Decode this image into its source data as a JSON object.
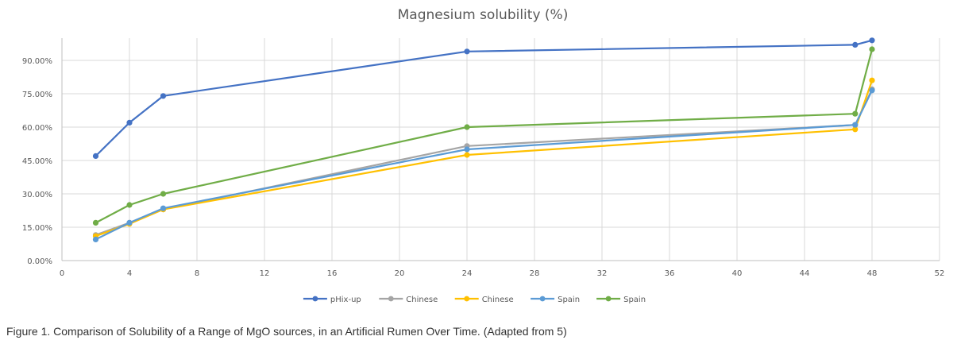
{
  "chart_data": {
    "type": "line",
    "title": "Magnesium solubility (%)",
    "xlabel": "",
    "ylabel": "",
    "xlim": [
      0,
      52
    ],
    "ylim": [
      0,
      100
    ],
    "x_ticks": [
      0,
      4,
      8,
      12,
      16,
      20,
      24,
      28,
      32,
      36,
      40,
      44,
      48,
      52
    ],
    "y_ticks": [
      0,
      15,
      30,
      45,
      60,
      75,
      90
    ],
    "y_tick_labels": [
      "0.00%",
      "15.00%",
      "30.00%",
      "45.00%",
      "60.00%",
      "75.00%",
      "90.00%"
    ],
    "grid": "vertical and horizontal",
    "legend_position": "bottom",
    "x": [
      2,
      4,
      6,
      24,
      47,
      48
    ],
    "series": [
      {
        "name": "pHix-up",
        "color": "#4472c4",
        "values": [
          47,
          62,
          74,
          94,
          97,
          99
        ]
      },
      {
        "name": "Chinese",
        "color": "#a5a5a5",
        "values": [
          11.5,
          17,
          23,
          51.5,
          61,
          77
        ]
      },
      {
        "name": "Chinese",
        "color": "#ffc000",
        "values": [
          11,
          16.5,
          23,
          47.5,
          59,
          81
        ]
      },
      {
        "name": "Spain",
        "color": "#5b9bd5",
        "values": [
          9.5,
          17,
          23.5,
          50,
          61,
          76.5
        ]
      },
      {
        "name": "Spain",
        "color": "#70ad47",
        "values": [
          17,
          25,
          30,
          60,
          66,
          95
        ]
      }
    ]
  },
  "caption": "Figure 1. Comparison of Solubility of a Range of MgO sources, in an Artificial Rumen Over Time. (Adapted from 5)"
}
